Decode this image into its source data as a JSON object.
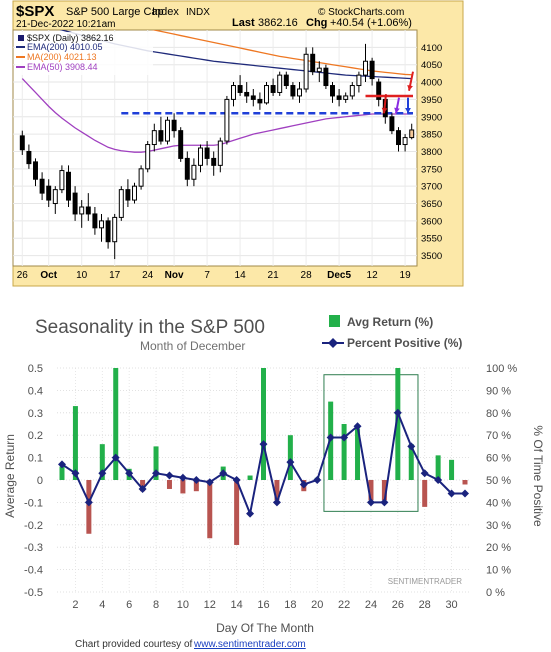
{
  "chart_data": [
    {
      "type": "candlestick",
      "header": {
        "symbol": "$SPX",
        "name_left": "S&P 500 Large Cap",
        "name_right": "Index",
        "exchange": "INDX",
        "date": "21-Dec-2022 10:21am",
        "last_label": "Last",
        "last": "3862.16",
        "chg_label": "Chg",
        "chg": "+40.54 (+1.06%)",
        "credit": "© StockCharts.com"
      },
      "legend": [
        {
          "label": "$SPX (Daily) 3862.16",
          "color": "#1a1a6e"
        },
        {
          "label": "EMA(200) 4010.05",
          "color": "#1f2a7a"
        },
        {
          "label": "MA(200) 4021.13",
          "color": "#ee7722"
        },
        {
          "label": "EMA(50) 3908.44",
          "color": "#a040c0"
        }
      ],
      "ylim": [
        3470,
        4150
      ],
      "yticks": [
        3500,
        3550,
        3600,
        3650,
        3700,
        3750,
        3800,
        3850,
        3900,
        3950,
        4000,
        4050,
        4100
      ],
      "xticks": [
        "26",
        "Oct",
        "10",
        "17",
        "24",
        "Nov",
        "7",
        "14",
        "21",
        "28",
        "Dec5",
        "12",
        "19"
      ],
      "xtick_index": [
        0,
        4,
        9,
        14,
        19,
        23,
        28,
        33,
        38,
        43,
        48,
        53,
        58
      ],
      "support_level": 3910,
      "ohlc": [
        [
          3845,
          3860,
          3790,
          3805
        ],
        [
          3800,
          3820,
          3750,
          3765
        ],
        [
          3770,
          3780,
          3700,
          3720
        ],
        [
          3720,
          3740,
          3660,
          3680
        ],
        [
          3700,
          3720,
          3640,
          3660
        ],
        [
          3650,
          3700,
          3620,
          3690
        ],
        [
          3690,
          3760,
          3680,
          3745
        ],
        [
          3740,
          3760,
          3640,
          3660
        ],
        [
          3680,
          3700,
          3600,
          3620
        ],
        [
          3620,
          3660,
          3580,
          3640
        ],
        [
          3640,
          3680,
          3600,
          3620
        ],
        [
          3620,
          3640,
          3560,
          3580
        ],
        [
          3580,
          3620,
          3540,
          3600
        ],
        [
          3600,
          3610,
          3520,
          3540
        ],
        [
          3540,
          3620,
          3490,
          3610
        ],
        [
          3610,
          3700,
          3600,
          3690
        ],
        [
          3690,
          3720,
          3640,
          3660
        ],
        [
          3660,
          3710,
          3650,
          3700
        ],
        [
          3700,
          3760,
          3690,
          3750
        ],
        [
          3750,
          3830,
          3740,
          3820
        ],
        [
          3820,
          3880,
          3800,
          3860
        ],
        [
          3860,
          3900,
          3820,
          3830
        ],
        [
          3830,
          3900,
          3820,
          3890
        ],
        [
          3890,
          3910,
          3840,
          3860
        ],
        [
          3860,
          3870,
          3770,
          3780
        ],
        [
          3780,
          3800,
          3700,
          3720
        ],
        [
          3720,
          3780,
          3700,
          3760
        ],
        [
          3760,
          3820,
          3740,
          3810
        ],
        [
          3810,
          3830,
          3760,
          3780
        ],
        [
          3780,
          3800,
          3730,
          3760
        ],
        [
          3760,
          3840,
          3740,
          3830
        ],
        [
          3830,
          3960,
          3820,
          3950
        ],
        [
          3950,
          4000,
          3930,
          3990
        ],
        [
          3990,
          4020,
          3960,
          3970
        ],
        [
          3970,
          4000,
          3940,
          3960
        ],
        [
          3960,
          3980,
          3930,
          3950
        ],
        [
          3950,
          3970,
          3920,
          3940
        ],
        [
          3940,
          4000,
          3935,
          3990
        ],
        [
          3990,
          4010,
          3960,
          3970
        ],
        [
          3970,
          4030,
          3960,
          4020
        ],
        [
          4020,
          4030,
          3980,
          3990
        ],
        [
          3990,
          4000,
          3950,
          3960
        ],
        [
          3960,
          4000,
          3940,
          3980
        ],
        [
          3980,
          4100,
          3970,
          4080
        ],
        [
          4080,
          4100,
          4020,
          4030
        ],
        [
          4030,
          4060,
          4000,
          4040
        ],
        [
          4040,
          4050,
          3980,
          3990
        ],
        [
          3990,
          4000,
          3940,
          3960
        ],
        [
          3960,
          3980,
          3930,
          3950
        ],
        [
          3950,
          3970,
          3940,
          3960
        ],
        [
          3960,
          4000,
          3950,
          3990
        ],
        [
          3990,
          4030,
          3970,
          4020
        ],
        [
          4020,
          4110,
          4000,
          4060
        ],
        [
          4060,
          4070,
          3990,
          4010
        ],
        [
          4000,
          4010,
          3930,
          3950
        ],
        [
          3950,
          3960,
          3880,
          3900
        ],
        [
          3900,
          3910,
          3850,
          3860
        ],
        [
          3860,
          3870,
          3800,
          3820
        ],
        [
          3820,
          3850,
          3800,
          3840
        ],
        [
          3840,
          3880,
          3835,
          3862
        ]
      ],
      "ema200": [
        4180,
        4175,
        4170,
        4165,
        4160,
        4155,
        4150,
        4145,
        4140,
        4135,
        4130,
        4125,
        4120,
        4115,
        4110,
        4106,
        4102,
        4098,
        4094,
        4090,
        4087,
        4084,
        4081,
        4078,
        4075,
        4072,
        4069,
        4066,
        4063,
        4060,
        4058,
        4056,
        4054,
        4052,
        4050,
        4048,
        4046,
        4044,
        4042,
        4040,
        4038,
        4036,
        4034,
        4032,
        4030,
        4028,
        4026,
        4024,
        4022,
        4020,
        4019,
        4018,
        4017,
        4016,
        4015,
        4014,
        4013,
        4012,
        4011,
        4010
      ],
      "ma200": [
        4230,
        4226,
        4222,
        4218,
        4214,
        4210,
        4206,
        4202,
        4198,
        4194,
        4190,
        4186,
        4182,
        4178,
        4174,
        4170,
        4166,
        4162,
        4158,
        4154,
        4150,
        4146,
        4142,
        4138,
        4134,
        4130,
        4126,
        4122,
        4118,
        4114,
        4110,
        4106,
        4102,
        4098,
        4094,
        4090,
        4086,
        4082,
        4078,
        4074,
        4071,
        4068,
        4065,
        4062,
        4059,
        4056,
        4053,
        4050,
        4047,
        4044,
        4041,
        4038,
        4035,
        4032,
        4030,
        4028,
        4026,
        4024,
        4022,
        4021
      ],
      "ema50": [
        4010,
        3990,
        3970,
        3950,
        3930,
        3912,
        3896,
        3882,
        3868,
        3856,
        3844,
        3832,
        3822,
        3812,
        3806,
        3802,
        3800,
        3798,
        3798,
        3800,
        3804,
        3808,
        3812,
        3816,
        3818,
        3818,
        3818,
        3818,
        3818,
        3818,
        3820,
        3826,
        3832,
        3838,
        3844,
        3850,
        3854,
        3858,
        3862,
        3866,
        3870,
        3874,
        3878,
        3882,
        3886,
        3890,
        3894,
        3896,
        3898,
        3900,
        3902,
        3904,
        3906,
        3908,
        3908,
        3908,
        3908,
        3908,
        3908,
        3908
      ]
    },
    {
      "type": "bar+line",
      "title": "Seasonality in the S&P 500",
      "subtitle": "Month of December",
      "xlabel": "Day Of The Month",
      "ylabel_left": "Average Return",
      "ylabel_right": "% Of Time Positive",
      "ylim_left": [
        -0.5,
        0.5
      ],
      "ylim_right": [
        0,
        100
      ],
      "yticks_left": [
        "-0.5",
        "-0.4",
        "-0.3",
        "-0.2",
        "-0.1",
        "0",
        "0.1",
        "0.2",
        "0.3",
        "0.4",
        "0.5"
      ],
      "yticks_right": [
        "0 %",
        "10 %",
        "20 %",
        "30 %",
        "40 %",
        "50 %",
        "60 %",
        "70 %",
        "80 %",
        "90 %",
        "100 %"
      ],
      "xticks": [
        "2",
        "4",
        "6",
        "8",
        "10",
        "12",
        "14",
        "16",
        "18",
        "20",
        "22",
        "24",
        "26",
        "28",
        "30"
      ],
      "days": [
        1,
        2,
        3,
        4,
        5,
        6,
        7,
        8,
        9,
        10,
        11,
        12,
        13,
        14,
        15,
        16,
        17,
        18,
        19,
        20,
        21,
        22,
        23,
        24,
        25,
        26,
        27,
        28,
        29,
        30,
        31
      ],
      "series": [
        {
          "name": "Avg Return (%)",
          "color_pos": "#22b04a",
          "color_neg": "#b85450",
          "values": [
            0.06,
            0.33,
            -0.24,
            0.16,
            0.5,
            0.05,
            -0.05,
            0.15,
            -0.04,
            -0.06,
            -0.05,
            -0.26,
            0.06,
            -0.29,
            0.02,
            0.5,
            -0.09,
            0.2,
            -0.05,
            0.01,
            0.35,
            0.25,
            0.23,
            -0.09,
            -0.09,
            0.5,
            0.16,
            -0.12,
            0.11,
            0.09,
            -0.02
          ]
        },
        {
          "name": "Percent Positive (%)",
          "color": "#1a237e",
          "values": [
            57,
            53,
            40,
            53,
            60,
            53,
            46,
            53,
            52,
            51,
            50,
            49,
            53,
            50,
            35,
            66,
            40,
            58,
            48,
            50,
            69,
            69,
            74,
            40,
            40,
            80,
            65,
            53,
            50,
            44,
            44
          ]
        }
      ],
      "highlight_days": [
        20.5,
        27.5
      ],
      "watermark": "SENTIMENTRADER",
      "credit_prefix": "Chart provided courtesy of",
      "credit_link": "www.sentimentrader.com"
    }
  ]
}
